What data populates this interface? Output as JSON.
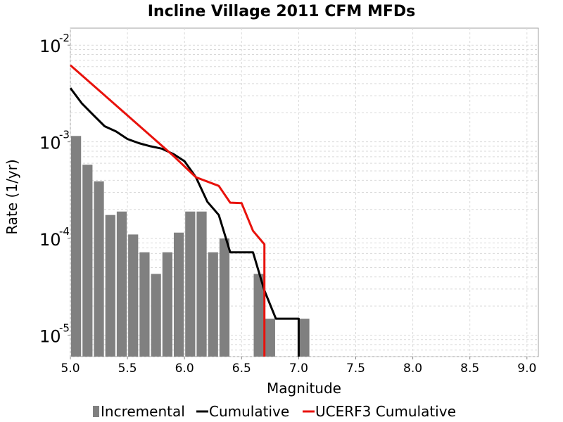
{
  "chart_data": {
    "type": "bar",
    "title": "Incline Village 2011 CFM MFDs",
    "xlabel": "Magnitude",
    "ylabel": "Rate (1/yr)",
    "xlim": [
      5.0,
      9.1
    ],
    "ylim": [
      6e-06,
      0.015
    ],
    "yscale": "log",
    "grid": true,
    "legend_position": "bottom",
    "xticks": [
      "5.0",
      "5.5",
      "6.0",
      "6.5",
      "7.0",
      "7.5",
      "8.0",
      "8.5",
      "9.0"
    ],
    "yticks": [
      {
        "base": "10",
        "exp": "-5",
        "value": 1e-05
      },
      {
        "base": "10",
        "exp": "-4",
        "value": 0.0001
      },
      {
        "base": "10",
        "exp": "-3",
        "value": 0.001
      },
      {
        "base": "10",
        "exp": "-2",
        "value": 0.01
      }
    ],
    "series": [
      {
        "name": "Incremental",
        "kind": "bar",
        "color": "#808080",
        "bar_width": 0.1,
        "x": [
          5.05,
          5.15,
          5.25,
          5.35,
          5.45,
          5.55,
          5.65,
          5.75,
          5.85,
          5.95,
          6.05,
          6.15,
          6.25,
          6.35,
          6.65,
          6.75,
          7.05
        ],
        "y": [
          0.00115,
          0.00058,
          0.00039,
          0.000175,
          0.00019,
          0.00011,
          7.2e-05,
          4.3e-05,
          7.2e-05,
          0.000115,
          0.00019,
          0.00019,
          7.2e-05,
          0.0001,
          4.3e-05,
          1.48e-05,
          1.48e-05
        ]
      },
      {
        "name": "Cumulative",
        "kind": "line",
        "color": "#000000",
        "x": [
          5.0,
          5.1,
          5.2,
          5.3,
          5.4,
          5.5,
          5.6,
          5.7,
          5.8,
          5.9,
          6.0,
          6.1,
          6.2,
          6.3,
          6.4,
          6.5,
          6.6,
          6.7,
          6.8,
          6.9,
          7.0,
          7.0
        ],
        "y": [
          0.0036,
          0.0025,
          0.0019,
          0.00145,
          0.00128,
          0.00107,
          0.00097,
          0.0009,
          0.00085,
          0.00075,
          0.00063,
          0.00043,
          0.00024,
          0.000175,
          7.2e-05,
          7.2e-05,
          7.2e-05,
          2.9e-05,
          1.48e-05,
          1.48e-05,
          1.48e-05,
          1e-06
        ]
      },
      {
        "name": "UCERF3 Cumulative",
        "kind": "line",
        "color": "#e8120c",
        "x": [
          5.0,
          5.9,
          6.1,
          6.3,
          6.4,
          6.5,
          6.6,
          6.7,
          6.7
        ],
        "y": [
          0.0062,
          0.00072,
          0.00043,
          0.00035,
          0.000235,
          0.000232,
          0.00012,
          8.7e-05,
          1e-06
        ]
      }
    ]
  }
}
